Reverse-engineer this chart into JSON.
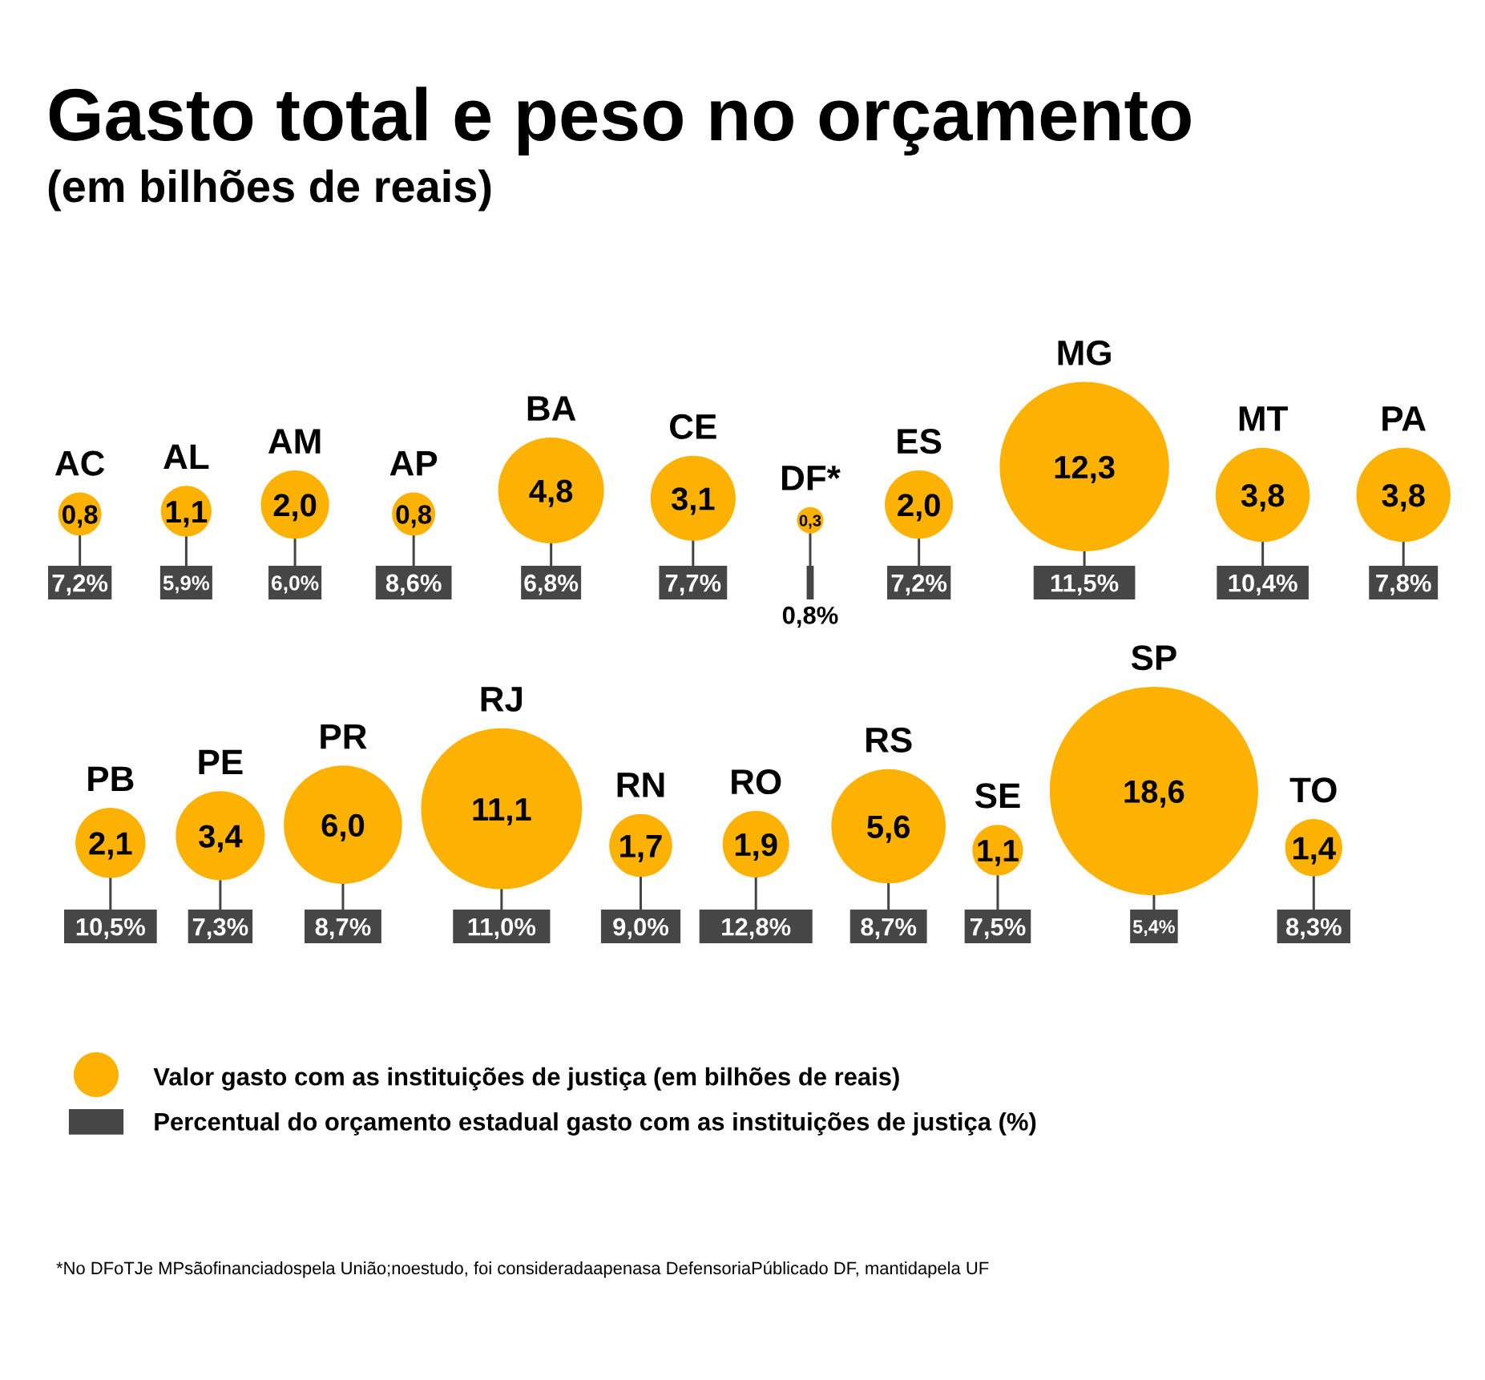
{
  "chart_data": {
    "type": "other",
    "title": "Gasto total e peso no orçamento",
    "subtitle": "(em bilhões de reais)",
    "categories": [
      "AC",
      "AL",
      "AM",
      "AP",
      "BA",
      "CE",
      "DF*",
      "ES",
      "MG",
      "MT",
      "PA",
      "PB",
      "PE",
      "PR",
      "RJ",
      "RN",
      "RO",
      "RS",
      "SE",
      "SP",
      "TO"
    ],
    "series": [
      {
        "name": "Valor gasto com as instituições de justiça (em bilhões de reais)",
        "type": "bubble",
        "color": "#fdb100",
        "values": [
          0.8,
          1.1,
          2.0,
          0.8,
          4.8,
          3.1,
          0.3,
          2.0,
          12.3,
          3.8,
          3.8,
          2.1,
          3.4,
          6.0,
          11.1,
          1.7,
          1.9,
          5.6,
          1.1,
          18.6,
          1.4
        ],
        "value_labels": [
          "0,8",
          "1,1",
          "2,0",
          "0,8",
          "4,8",
          "3,1",
          "0,3",
          "2,0",
          "12,3",
          "3,8",
          "3,8",
          "2,1",
          "3,4",
          "6,0",
          "11,1",
          "1,7",
          "1,9",
          "5,6",
          "1,1",
          "18,6",
          "1,4"
        ]
      },
      {
        "name": "Percentual do orçamento estadual gasto com as instituições de justiça (%)",
        "type": "bar",
        "color": "#464646",
        "values": [
          7.2,
          5.9,
          6.0,
          8.6,
          6.8,
          7.7,
          0.8,
          7.2,
          11.5,
          10.4,
          7.8,
          10.5,
          7.3,
          8.7,
          11.0,
          9.0,
          12.8,
          8.7,
          7.5,
          5.4,
          8.3
        ],
        "value_labels": [
          "7,2%",
          "5,9%",
          "6,0%",
          "8,6%",
          "6,8%",
          "7,7%",
          "0,8%",
          "7,2%",
          "11,5%",
          "10,4%",
          "7,8%",
          "10,5%",
          "7,3%",
          "8,7%",
          "11,0%",
          "9,0%",
          "12,8%",
          "8,7%",
          "7,5%",
          "5,4%",
          "8,3%"
        ]
      }
    ],
    "legend": "bottom left",
    "annotations": [
      "*No DFoTJe MPsãofinanciadospela União;noestudo, foi consideradaapenasa DefensoriaPúblicado DF, mantidapela UF"
    ]
  }
}
